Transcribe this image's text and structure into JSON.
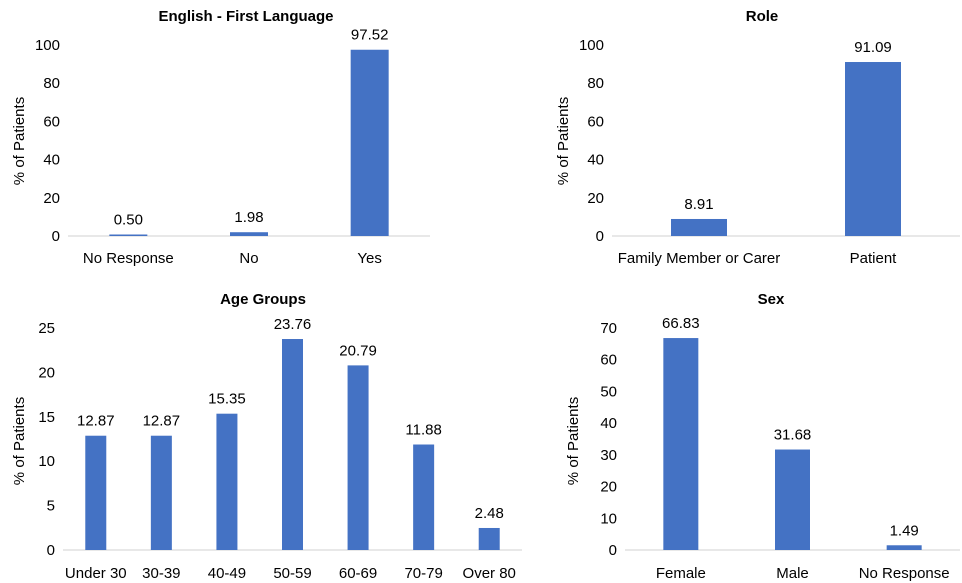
{
  "chart_data": [
    {
      "type": "bar",
      "title": "English - First Language",
      "ylabel": "% of Patients",
      "categories": [
        "No Response",
        "No",
        "Yes"
      ],
      "values": [
        0.5,
        1.98,
        97.52
      ],
      "data_labels": [
        "0.50",
        "1.98",
        "97.52"
      ],
      "yticks": [
        "0",
        "20",
        "40",
        "60",
        "80",
        "100"
      ],
      "ylim": [
        0,
        100
      ],
      "color": "#4472C4"
    },
    {
      "type": "bar",
      "title": "Role",
      "ylabel": "% of Patients",
      "categories": [
        "Family Member or Carer",
        "Patient"
      ],
      "values": [
        8.91,
        91.09
      ],
      "data_labels": [
        "8.91",
        "91.09"
      ],
      "yticks": [
        "0",
        "20",
        "40",
        "60",
        "80",
        "100"
      ],
      "ylim": [
        0,
        100
      ],
      "color": "#4472C4"
    },
    {
      "type": "bar",
      "title": "Age Groups",
      "ylabel": "% of Patients",
      "categories": [
        "Under 30",
        "30-39",
        "40-49",
        "50-59",
        "60-69",
        "70-79",
        "Over 80"
      ],
      "values": [
        12.87,
        12.87,
        15.35,
        23.76,
        20.79,
        11.88,
        2.48
      ],
      "data_labels": [
        "12.87",
        "12.87",
        "15.35",
        "23.76",
        "20.79",
        "11.88",
        "2.48"
      ],
      "yticks": [
        "0",
        "5",
        "10",
        "15",
        "20",
        "25"
      ],
      "ylim": [
        0,
        25
      ],
      "color": "#4472C4"
    },
    {
      "type": "bar",
      "title": "Sex",
      "ylabel": "% of Patients",
      "categories": [
        "Female",
        "Male",
        "No Response"
      ],
      "values": [
        66.83,
        31.68,
        1.49
      ],
      "data_labels": [
        "66.83",
        "31.68",
        "1.49"
      ],
      "yticks": [
        "0",
        "10",
        "20",
        "30",
        "40",
        "50",
        "60",
        "70"
      ],
      "ylim": [
        0,
        70
      ],
      "color": "#4472C4"
    }
  ]
}
